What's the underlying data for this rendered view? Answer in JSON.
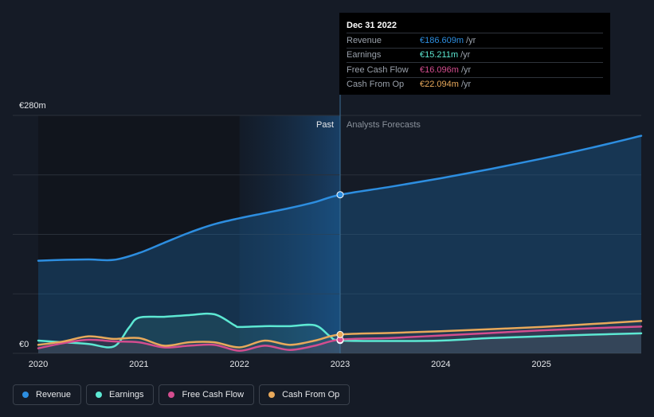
{
  "chart_data": {
    "type": "line",
    "y_unit": "€m",
    "ylim": [
      0,
      280
    ],
    "y_ticks": [
      {
        "value": 280,
        "label": "€280m"
      },
      {
        "value": 0,
        "label": "€0"
      }
    ],
    "x_ticks": [
      {
        "value": 2020,
        "label": "2020"
      },
      {
        "value": 2021,
        "label": "2021"
      },
      {
        "value": 2022,
        "label": "2022"
      },
      {
        "value": 2023,
        "label": "2023"
      },
      {
        "value": 2024,
        "label": "2024"
      },
      {
        "value": 2025,
        "label": "2025"
      }
    ],
    "xlim": [
      2020,
      2026
    ],
    "divider_x": 2023,
    "shade_start_x": 2022,
    "past_label": "Past",
    "forecast_label": "Analysts Forecasts",
    "series": [
      {
        "name": "Revenue",
        "color": "#2d8ee0",
        "points": [
          [
            2020,
            109
          ],
          [
            2020.25,
            110
          ],
          [
            2020.5,
            110.5
          ],
          [
            2020.75,
            110
          ],
          [
            2021,
            118
          ],
          [
            2021.25,
            130
          ],
          [
            2021.5,
            142
          ],
          [
            2021.75,
            152
          ],
          [
            2022,
            159
          ],
          [
            2022.25,
            165
          ],
          [
            2022.5,
            171
          ],
          [
            2022.75,
            178
          ],
          [
            2023,
            186.6
          ],
          [
            2023.5,
            196
          ],
          [
            2024,
            206
          ],
          [
            2024.5,
            217
          ],
          [
            2025,
            229
          ],
          [
            2025.5,
            242
          ],
          [
            2026,
            256
          ]
        ]
      },
      {
        "name": "Earnings",
        "color": "#5de8d3",
        "points": [
          [
            2020,
            15
          ],
          [
            2020.25,
            13
          ],
          [
            2020.5,
            11
          ],
          [
            2020.75,
            8
          ],
          [
            2020.9,
            30
          ],
          [
            2021,
            42
          ],
          [
            2021.25,
            43
          ],
          [
            2021.5,
            45
          ],
          [
            2021.75,
            46
          ],
          [
            2021.95,
            33
          ],
          [
            2022,
            31
          ],
          [
            2022.25,
            32
          ],
          [
            2022.5,
            32
          ],
          [
            2022.75,
            33
          ],
          [
            2022.9,
            20
          ],
          [
            2023,
            15.2
          ],
          [
            2023.5,
            14.5
          ],
          [
            2024,
            15
          ],
          [
            2024.5,
            18
          ],
          [
            2025,
            20
          ],
          [
            2025.5,
            22
          ],
          [
            2026,
            23.5
          ]
        ]
      },
      {
        "name": "Free Cash Flow",
        "color": "#d44d8f",
        "points": [
          [
            2020,
            6
          ],
          [
            2020.25,
            12
          ],
          [
            2020.5,
            16
          ],
          [
            2020.75,
            14
          ],
          [
            2021,
            13
          ],
          [
            2021.25,
            7
          ],
          [
            2021.5,
            9
          ],
          [
            2021.75,
            10
          ],
          [
            2022,
            3
          ],
          [
            2022.25,
            9
          ],
          [
            2022.5,
            4
          ],
          [
            2022.75,
            9
          ],
          [
            2023,
            16.1
          ],
          [
            2023.5,
            18
          ],
          [
            2024,
            21
          ],
          [
            2024.5,
            24
          ],
          [
            2025,
            27
          ],
          [
            2025.5,
            29.5
          ],
          [
            2026,
            31.5
          ]
        ]
      },
      {
        "name": "Cash From Op",
        "color": "#e8a95b",
        "points": [
          [
            2020,
            10
          ],
          [
            2020.25,
            14
          ],
          [
            2020.5,
            20
          ],
          [
            2020.75,
            17
          ],
          [
            2021,
            18
          ],
          [
            2021.25,
            9
          ],
          [
            2021.5,
            13
          ],
          [
            2021.75,
            13
          ],
          [
            2022,
            7
          ],
          [
            2022.25,
            15
          ],
          [
            2022.5,
            10
          ],
          [
            2022.75,
            15
          ],
          [
            2023,
            22.1
          ],
          [
            2023.5,
            24
          ],
          [
            2024,
            26
          ],
          [
            2024.5,
            28.5
          ],
          [
            2025,
            31
          ],
          [
            2025.5,
            34.5
          ],
          [
            2026,
            38
          ]
        ]
      }
    ]
  },
  "tooltip": {
    "date": "Dec 31 2022",
    "rows": [
      {
        "label": "Revenue",
        "value": "€186.609m",
        "unit": "/yr",
        "color": "#2d8ee0"
      },
      {
        "label": "Earnings",
        "value": "€15.211m",
        "unit": "/yr",
        "color": "#5de8d3"
      },
      {
        "label": "Free Cash Flow",
        "value": "€16.096m",
        "unit": "/yr",
        "color": "#d44d8f"
      },
      {
        "label": "Cash From Op",
        "value": "€22.094m",
        "unit": "/yr",
        "color": "#e8a95b"
      }
    ]
  },
  "legend": [
    {
      "label": "Revenue",
      "color": "#2d8ee0"
    },
    {
      "label": "Earnings",
      "color": "#5de8d3"
    },
    {
      "label": "Free Cash Flow",
      "color": "#d44d8f"
    },
    {
      "label": "Cash From Op",
      "color": "#e8a95b"
    }
  ]
}
